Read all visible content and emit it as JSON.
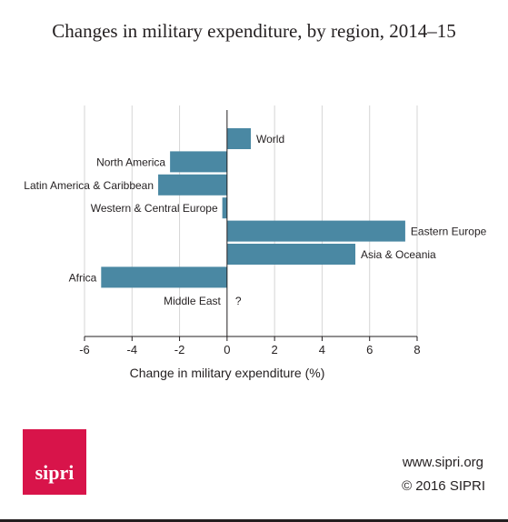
{
  "title": "Changes in military expenditure, by region, 2014–15",
  "footer": {
    "logo_text": "sipri",
    "website": "www.sipri.org",
    "copyright": "© 2016 SIPRI"
  },
  "colors": {
    "bar": "#4a88a3",
    "grid": "#d6d6d6",
    "axis": "#231f20",
    "logo": "#d8144a"
  },
  "chart_data": {
    "type": "bar",
    "orientation": "horizontal",
    "categories": [
      "World",
      "North America",
      "Latin America &  Caribbean",
      "Western & Central Europe",
      "Eastern Europe",
      "Asia & Oceania",
      "Africa",
      "Middle East"
    ],
    "values": [
      1.0,
      -2.4,
      -2.9,
      -0.2,
      7.5,
      5.4,
      -5.3,
      null
    ],
    "missing_marker": "?",
    "xlabel": "Change in military expenditure (%)",
    "ylabel": "",
    "xlim": [
      -6,
      8
    ],
    "xticks": [
      -6,
      -4,
      -2,
      0,
      2,
      4,
      6,
      8
    ],
    "grid": true
  }
}
